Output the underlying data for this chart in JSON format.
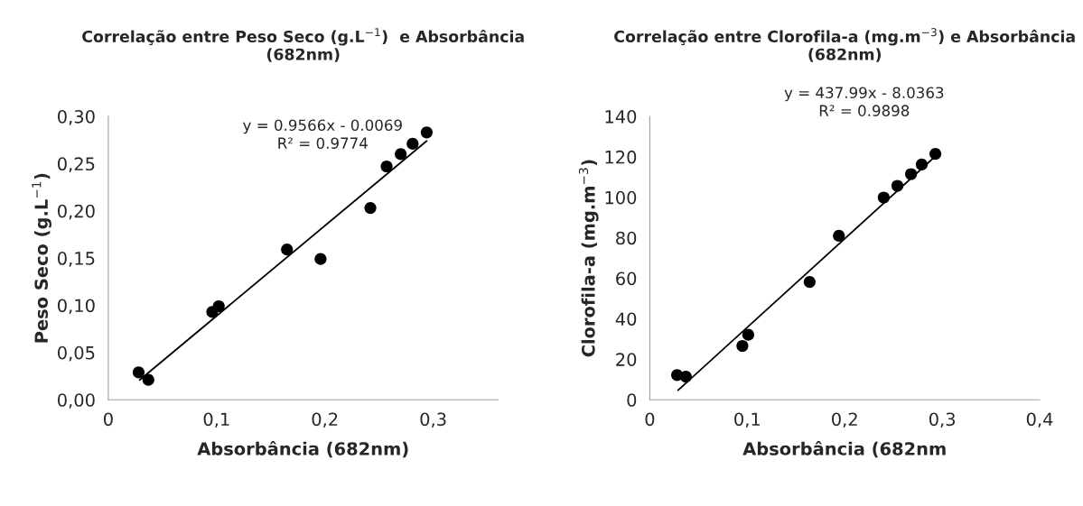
{
  "chart_data": [
    {
      "type": "scatter",
      "title": "Correlação entre Peso Seco (g.L$^{−1}$)  e Absorbância\n(682nm)",
      "xlabel": "Absorbância (682nm)",
      "ylabel": "Peso Seco (g.L$^{−1}$)",
      "annotations": [
        "y = 0.9566x - 0.0069\nR² = 0.9774"
      ],
      "series": [
        {
          "color": "#000000",
          "marker": "circle",
          "x": [
            0.028,
            0.037,
            0.096,
            0.102,
            0.165,
            0.196,
            0.242,
            0.257,
            0.27,
            0.281,
            0.294
          ],
          "values": [
            0.029,
            0.021,
            0.093,
            0.099,
            0.159,
            0.149,
            0.203,
            0.247,
            0.26,
            0.271,
            0.283
          ]
        },
        {
          "type": "line",
          "color": "#000000",
          "x": [
            0.029,
            0.294
          ],
          "values": [
            0.021,
            0.274
          ]
        }
      ],
      "xlim": [
        0,
        0.36
      ],
      "xticks": [
        {
          "value": 0,
          "label": "0"
        },
        {
          "value": 0.1,
          "label": "0,1"
        },
        {
          "value": 0.2,
          "label": "0,2"
        },
        {
          "value": 0.3,
          "label": "0,3"
        }
      ],
      "ylim": [
        0,
        0.3
      ],
      "yticks": [
        {
          "value": 0,
          "label": "0,00"
        },
        {
          "value": 0.05,
          "label": "0,05"
        },
        {
          "value": 0.1,
          "label": "0,10"
        },
        {
          "value": 0.15,
          "label": "0,15"
        },
        {
          "value": 0.2,
          "label": "0,20"
        },
        {
          "value": 0.25,
          "label": "0,25"
        },
        {
          "value": 0.3,
          "label": "0,30"
        }
      ]
    },
    {
      "type": "scatter",
      "title": "Correlação entre Clorofila-a (mg.m$^{−3}$) e Absorbância\n(682nm)",
      "xlabel": "Absorbância (682nm",
      "ylabel": "Clorofila-a (mg.m$^{−3}$)",
      "annotations": [
        "y = 437.99x - 8.0363\nR² = 0.9898"
      ],
      "series": [
        {
          "color": "#000000",
          "marker": "circle",
          "x": [
            0.028,
            0.037,
            0.095,
            0.101,
            0.164,
            0.194,
            0.24,
            0.254,
            0.268,
            0.279,
            0.293
          ],
          "values": [
            12.2,
            11.4,
            26.6,
            32.1,
            58.2,
            81.0,
            99.9,
            105.7,
            111.5,
            116.2,
            121.5
          ]
        },
        {
          "type": "line",
          "color": "#000000",
          "x": [
            0.029,
            0.293
          ],
          "values": [
            4.7,
            120.3
          ]
        }
      ],
      "xlim": [
        0,
        0.4
      ],
      "xticks": [
        {
          "value": 0,
          "label": "0"
        },
        {
          "value": 0.1,
          "label": "0,1"
        },
        {
          "value": 0.2,
          "label": "0,2"
        },
        {
          "value": 0.3,
          "label": "0,3"
        },
        {
          "value": 0.4,
          "label": "0,4"
        }
      ],
      "ylim": [
        0,
        140
      ],
      "yticks": [
        0,
        20,
        40,
        60,
        80,
        100,
        120,
        140
      ]
    }
  ]
}
